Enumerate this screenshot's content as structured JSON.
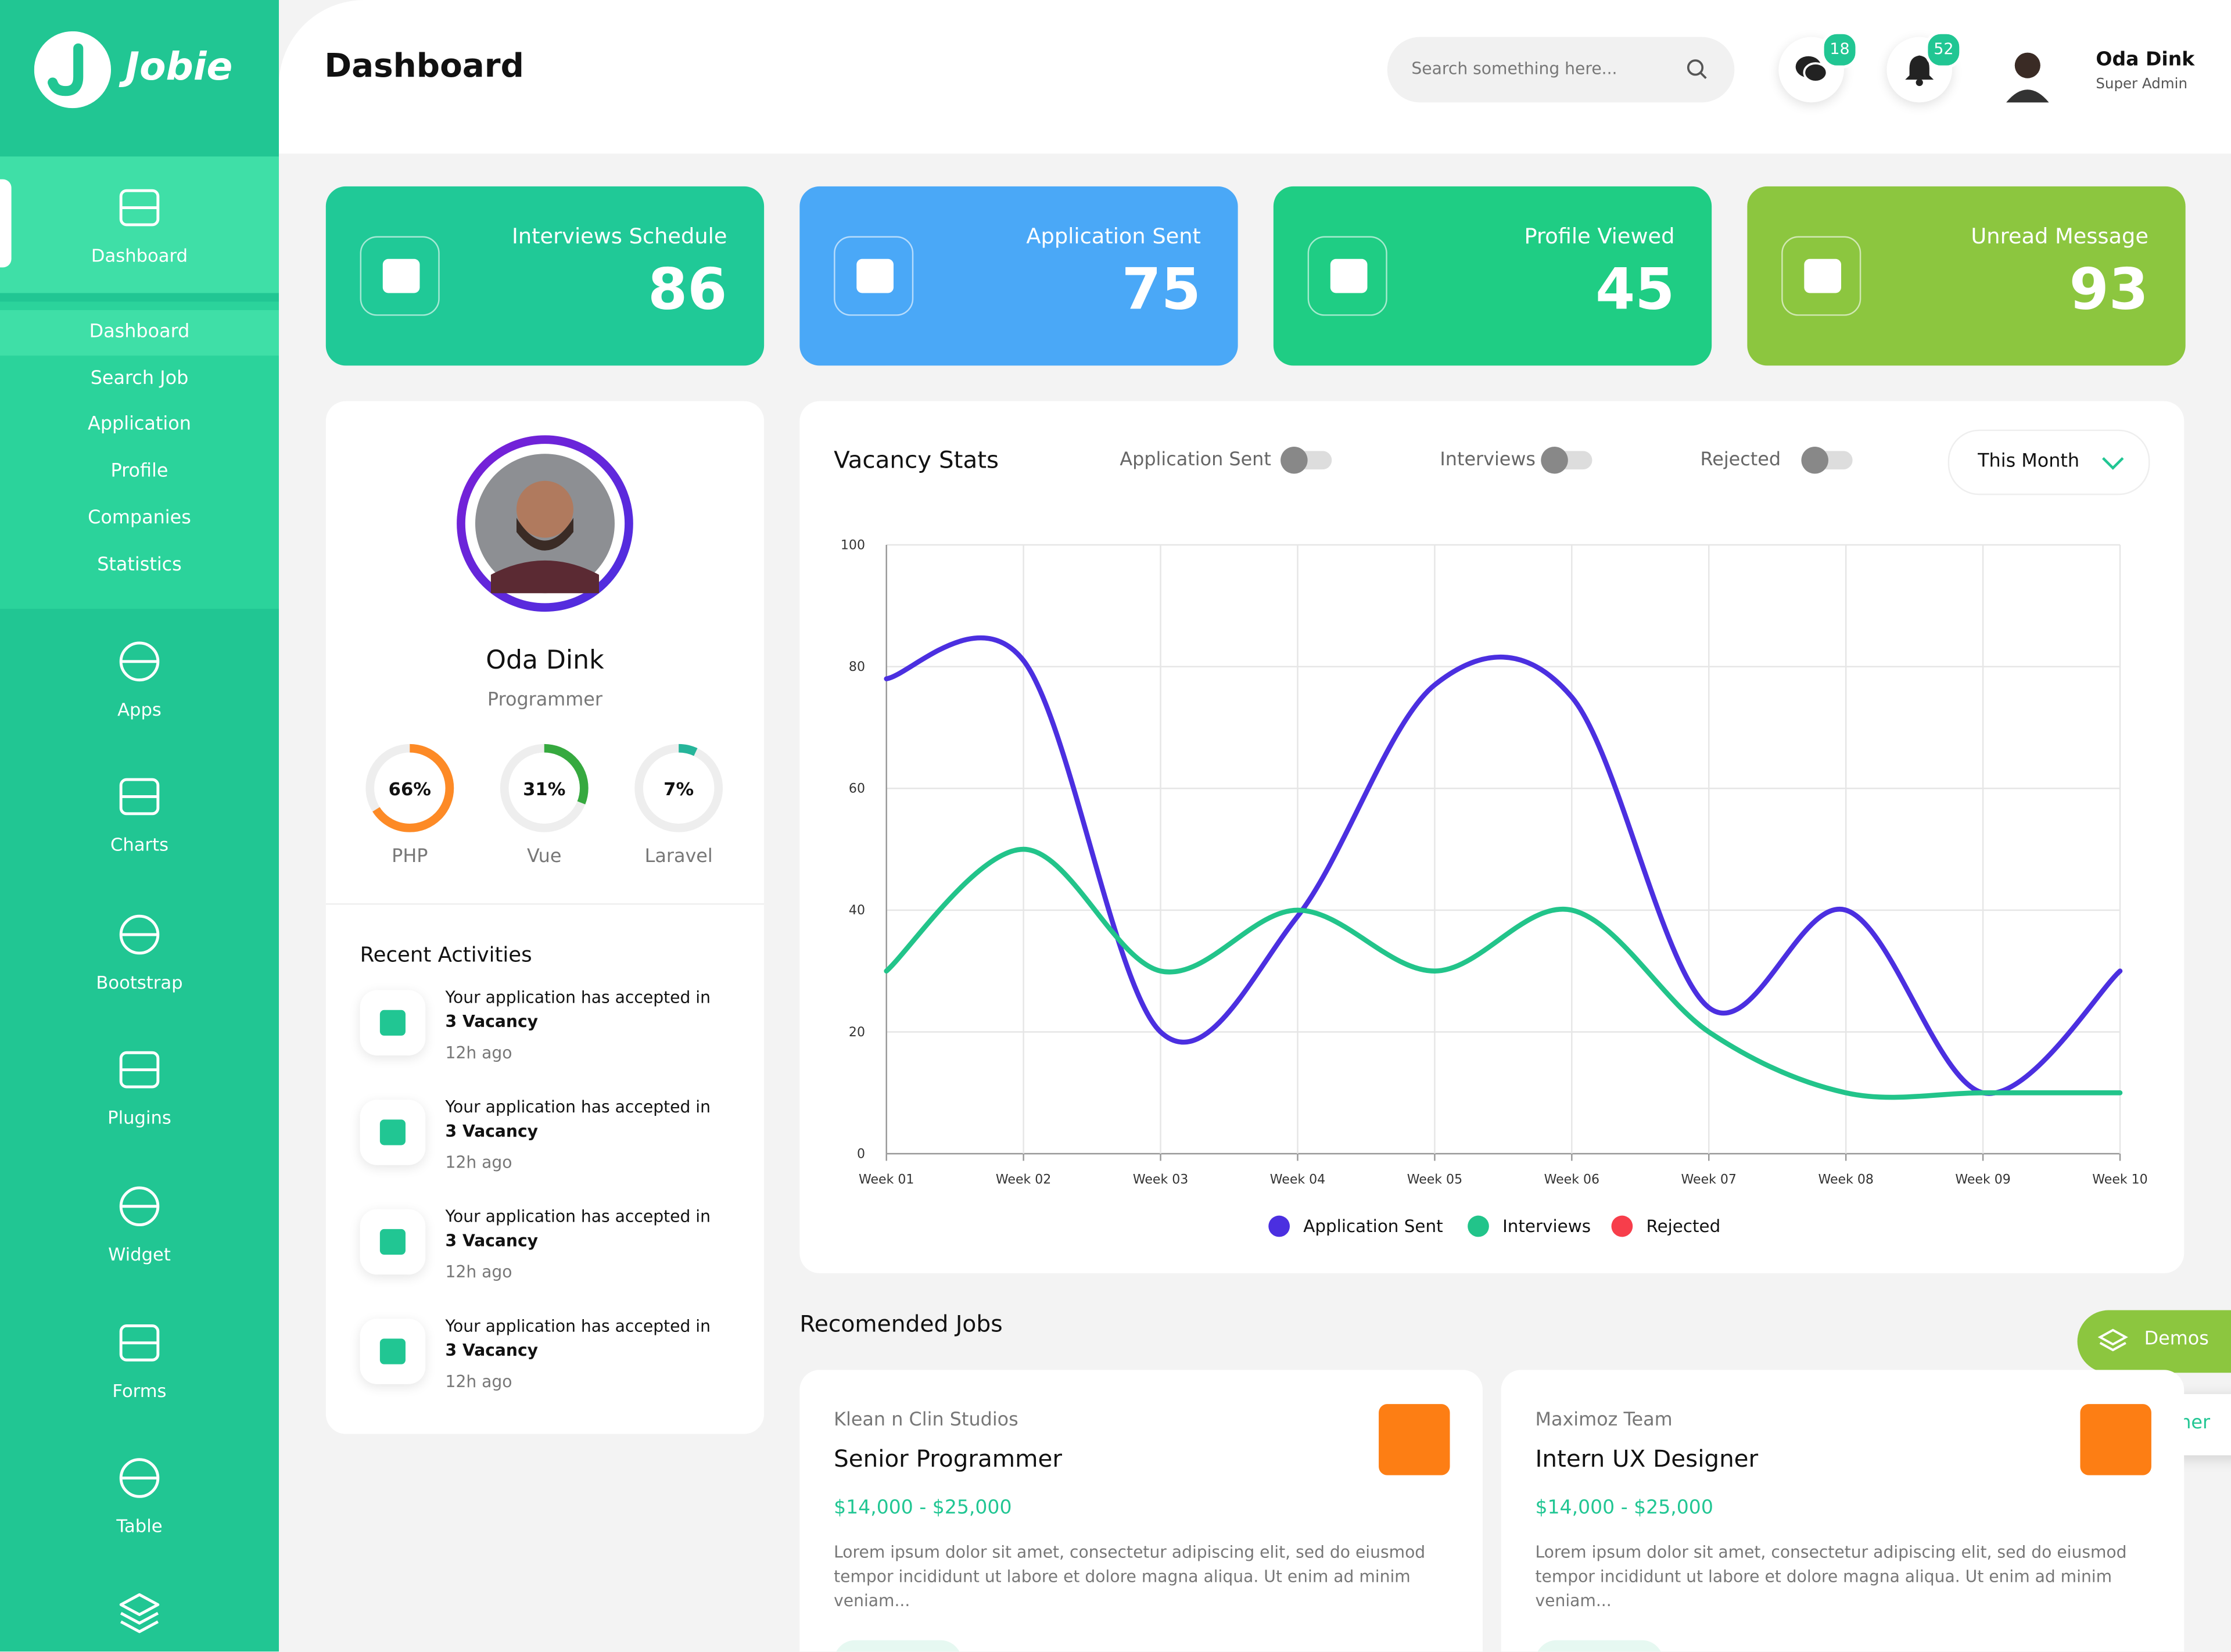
{
  "sidebar": {
    "brand": "Jobie",
    "nav": [
      "Dashboard",
      "Apps",
      "Charts",
      "Bootstrap",
      "Plugins",
      "Widget",
      "Forms",
      "Table"
    ],
    "submenu": [
      "Dashboard",
      "Search Job",
      "Application",
      "Profile",
      "Companies",
      "Statistics"
    ]
  },
  "header": {
    "title": "Dashboard",
    "search_placeholder": "Search something here...",
    "messages": 18,
    "notifications": 52,
    "user_name": "Oda Dink",
    "user_role": "Super Admin"
  },
  "stats": [
    {
      "label": "Interviews Schedule",
      "value": 86,
      "color": "#20c997"
    },
    {
      "label": "Application Sent",
      "value": 75,
      "color": "#4aa8f7"
    },
    {
      "label": "Profile Viewed",
      "value": 45,
      "color": "#1fcd84"
    },
    {
      "label": "Unread Message",
      "value": 93,
      "color": "#8cc63f"
    }
  ],
  "profile": {
    "name": "Oda Dink",
    "role": "Programmer",
    "skills": {
      "names": [
        "PHP",
        "Vue",
        "Laravel"
      ],
      "values": [
        66,
        31,
        7
      ],
      "value_labels": [
        "66%",
        "31%",
        "7%"
      ],
      "colors": [
        "#fd8a26",
        "#36a93f",
        "#26b59a"
      ]
    }
  },
  "activities": {
    "title": "Recent Activities",
    "items": [
      {
        "text": "Your application has accepted in",
        "bold": "3 Vacancy",
        "time": "12h ago"
      },
      {
        "text": "Your application has accepted in",
        "bold": "3 Vacancy",
        "time": "12h ago"
      },
      {
        "text": "Your application has accepted in",
        "bold": "3 Vacancy",
        "time": "12h ago"
      },
      {
        "text": "Your application has accepted in",
        "bold": "3 Vacancy",
        "time": "12h ago"
      }
    ]
  },
  "chart_data": {
    "type": "line",
    "title": "Vacancy Stats",
    "period": "This Month",
    "categories": [
      "Week 01",
      "Week 02",
      "Week 03",
      "Week 04",
      "Week 05",
      "Week 06",
      "Week 07",
      "Week 08",
      "Week 09",
      "Week 10"
    ],
    "series": [
      {
        "name": "Application Sent",
        "color": "#4b2fe0",
        "values": [
          78,
          81,
          20,
          39,
          77,
          75,
          24,
          40,
          10,
          30
        ]
      },
      {
        "name": "Interviews",
        "color": "#22c48a",
        "values": [
          30,
          50,
          30,
          40,
          30,
          40,
          20,
          10,
          10,
          10
        ]
      },
      {
        "name": "Rejected",
        "color": "#f73e4b",
        "values": [
          null,
          null,
          null,
          null,
          null,
          null,
          null,
          null,
          null,
          null
        ]
      }
    ],
    "ylim": [
      0,
      100
    ],
    "yticks": [
      0,
      20,
      40,
      60,
      80,
      100
    ],
    "grid": true
  },
  "jobs": {
    "title": "Recomended Jobs",
    "items": [
      {
        "company": "Klean n Clin Studios",
        "title": "Senior Programmer",
        "salary": "$14,000 - $25,000",
        "description": "Lorem ipsum dolor sit amet, consectetur adipiscing elit, sed do eiusmod tempor incididunt ut labore et dolore magna aliqua. Ut enim ad minim veniam..."
      },
      {
        "company": "Maximoz Team",
        "title": "Intern UX Designer",
        "salary": "$14,000 - $25,000",
        "description": "Lorem ipsum dolor sit amet, consectetur adipiscing elit, sed do eiusmod tempor incididunt ut labore et dolore magna aliqua. Ut enim ad minim veniam..."
      }
    ]
  },
  "floating": [
    "Demos",
    "Switcher"
  ]
}
